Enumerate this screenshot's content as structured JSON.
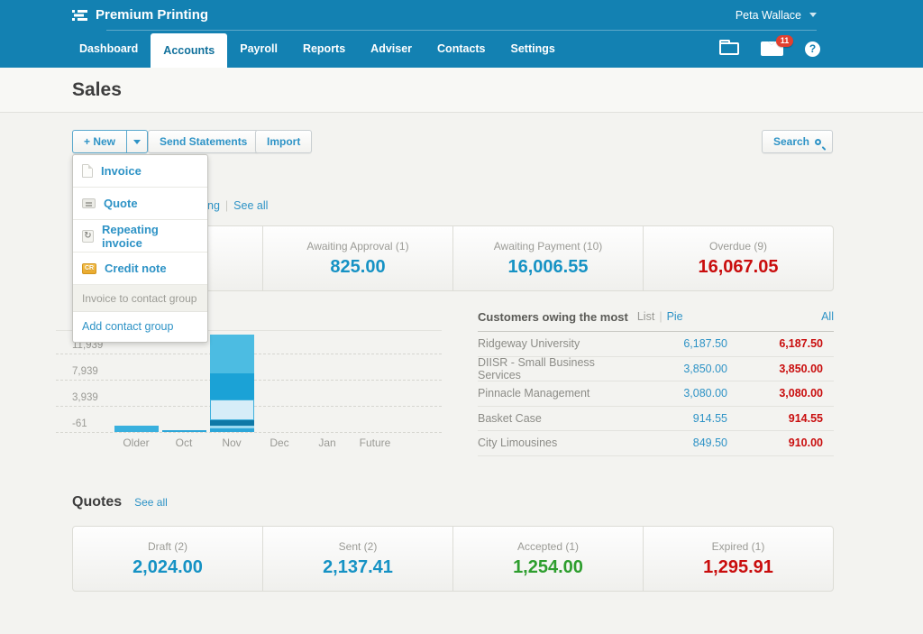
{
  "colors": {
    "brand": "#1381b2",
    "link": "#2e93c6",
    "amount-blue": "#1692c4",
    "amount-red": "#c90d0d",
    "amount-green": "#2e9e2e",
    "badge-red": "#e2402f"
  },
  "topbar": {
    "org_name": "Premium Printing",
    "user_name": "Peta Wallace"
  },
  "nav": {
    "tabs": [
      {
        "label": "Dashboard"
      },
      {
        "label": "Accounts"
      },
      {
        "label": "Payroll"
      },
      {
        "label": "Reports"
      },
      {
        "label": "Adviser"
      },
      {
        "label": "Contacts"
      },
      {
        "label": "Settings"
      }
    ],
    "mail_badge": "11",
    "help_glyph": "?"
  },
  "page": {
    "title": "Sales"
  },
  "toolbar": {
    "new_label": "+ New",
    "send_statements_label": "Send Statements",
    "import_label": "Import",
    "search_label": "Search"
  },
  "new_menu": {
    "items": [
      {
        "label": "Invoice",
        "icon": "invoice-icon"
      },
      {
        "label": "Quote",
        "icon": "quote-icon"
      },
      {
        "label": "Repeating invoice",
        "icon": "repeating-invoice-icon"
      },
      {
        "label": "Credit note",
        "icon": "credit-note-icon"
      }
    ],
    "disabled_item": "Invoice to contact group",
    "footer_item": "Add contact group"
  },
  "invoices_strip": {
    "partial_text": "ng",
    "divider": "|",
    "see_all": "See all"
  },
  "invoice_cards": [
    {
      "label": "",
      "value": "",
      "color": ""
    },
    {
      "label": "Awaiting Approval (1)",
      "value": "825.00",
      "color": "#1692c4"
    },
    {
      "label": "Awaiting Payment (10)",
      "value": "16,006.55",
      "color": "#1692c4"
    },
    {
      "label": "Overdue (9)",
      "value": "16,067.05",
      "color": "#c90d0d"
    }
  ],
  "chart_data": {
    "type": "bar",
    "stacked": true,
    "title": "",
    "xlabel": "",
    "ylabel": "",
    "categories": [
      "Older",
      "Oct",
      "Nov",
      "Dec",
      "Jan",
      "Future"
    ],
    "y_ticks": [
      {
        "label": "",
        "value": 15939
      },
      {
        "label": "11,939",
        "value": 11939
      },
      {
        "label": "7,939",
        "value": 7939
      },
      {
        "label": "3,939",
        "value": 3939
      },
      {
        "label": "-61",
        "value": -61
      }
    ],
    "ylim": [
      -61,
      16000
    ],
    "grid": "horizontal-dashed",
    "legend": "none",
    "bars": [
      {
        "category": "Older",
        "total": 900,
        "segments": [
          {
            "value": 900,
            "color": "#39b0de"
          }
        ]
      },
      {
        "category": "Oct",
        "total": 250,
        "segments": [
          {
            "value": 250,
            "color": "#2ca6d8"
          }
        ]
      },
      {
        "category": "Nov",
        "total": 14960,
        "segments": [
          {
            "value": 550,
            "color": "#2ca6d8"
          },
          {
            "value": 410,
            "color": "#9bd9f0"
          },
          {
            "value": 830,
            "color": "#0f78a6"
          },
          {
            "value": 3170,
            "color": "#d6edf8",
            "border": "#3fb0dc"
          },
          {
            "value": 4000,
            "color": "#1ba2d6"
          },
          {
            "value": 6000,
            "color": "#4cbce2"
          }
        ]
      },
      {
        "category": "Dec",
        "total": 0,
        "segments": []
      },
      {
        "category": "Jan",
        "total": 0,
        "segments": []
      },
      {
        "category": "Future",
        "total": 0,
        "segments": []
      }
    ]
  },
  "customers": {
    "title": "Customers owing the most",
    "view_list": "List",
    "view_divider": "|",
    "view_pie": "Pie",
    "all_link": "All",
    "rows": [
      {
        "name": "Ridgeway University",
        "owing": "6,187.50",
        "overdue": "6,187.50"
      },
      {
        "name": "DIISR - Small Business Services",
        "owing": "3,850.00",
        "overdue": "3,850.00"
      },
      {
        "name": "Pinnacle Management",
        "owing": "3,080.00",
        "overdue": "3,080.00"
      },
      {
        "name": "Basket Case",
        "owing": "914.55",
        "overdue": "914.55"
      },
      {
        "name": "City Limousines",
        "owing": "849.50",
        "overdue": "910.00"
      }
    ]
  },
  "quotes": {
    "title": "Quotes",
    "see_all": "See all",
    "cards": [
      {
        "label": "Draft (2)",
        "value": "2,024.00",
        "color": "#1692c4"
      },
      {
        "label": "Sent (2)",
        "value": "2,137.41",
        "color": "#1692c4"
      },
      {
        "label": "Accepted (1)",
        "value": "1,254.00",
        "color": "#2e9e2e"
      },
      {
        "label": "Expired (1)",
        "value": "1,295.91",
        "color": "#c90d0d"
      }
    ]
  }
}
